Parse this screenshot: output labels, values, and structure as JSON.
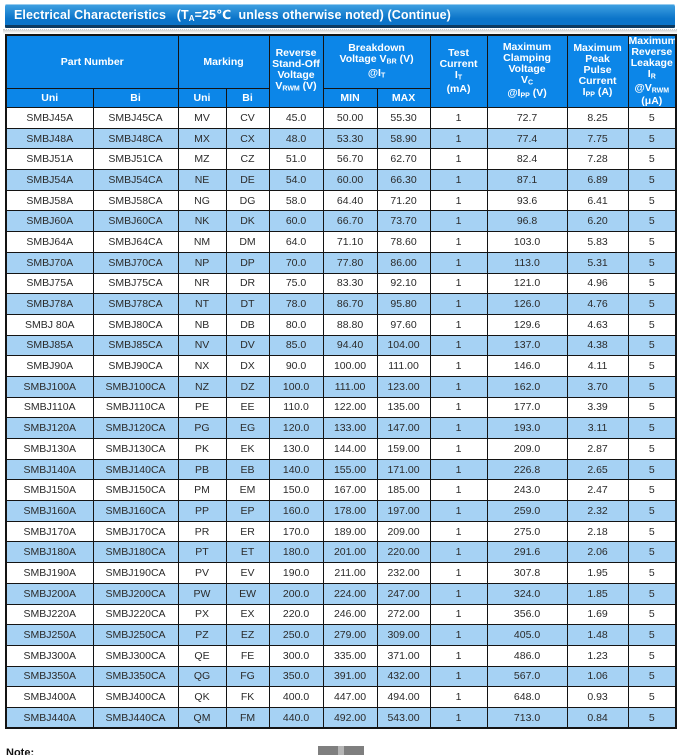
{
  "title": {
    "segments": [
      {
        "t": "Electrical Characteristics   (T"
      },
      {
        "t": "A",
        "sub": true
      },
      {
        "t": "=25℃  unless otherwise noted) (Continue)"
      }
    ]
  },
  "table": {
    "header": {
      "part_number": "Part Number",
      "marking": "Marking",
      "uni": "Uni",
      "bi": "Bi",
      "min": "MIN",
      "max": "MAX",
      "reverse_standoff": [
        {
          "t": "Reverse"
        },
        {
          "br": true
        },
        {
          "t": "Stand-Off"
        },
        {
          "br": true
        },
        {
          "t": "Voltage"
        },
        {
          "br": true
        },
        {
          "t": "V"
        },
        {
          "t": "RWM",
          "sub": true
        },
        {
          "t": " (V)"
        }
      ],
      "breakdown": [
        {
          "t": "Breakdown"
        },
        {
          "br": true
        },
        {
          "t": "Voltage V"
        },
        {
          "t": "BR",
          "sub": true
        },
        {
          "t": "  (V)"
        },
        {
          "br": true
        },
        {
          "t": "@I"
        },
        {
          "t": "T",
          "sub": true
        }
      ],
      "test_current": [
        {
          "t": "Test"
        },
        {
          "br": true
        },
        {
          "t": "Current"
        },
        {
          "br": true
        },
        {
          "t": "I"
        },
        {
          "t": "T",
          "sub": true
        },
        {
          "br": true
        },
        {
          "t": "(mA)"
        }
      ],
      "clamping": [
        {
          "t": "Maximum"
        },
        {
          "br": true
        },
        {
          "t": "Clamping"
        },
        {
          "br": true
        },
        {
          "t": "Voltage"
        },
        {
          "br": true
        },
        {
          "t": "V"
        },
        {
          "t": "C",
          "sub": true
        },
        {
          "br": true
        },
        {
          "t": "@I"
        },
        {
          "t": "PP",
          "sub": true
        },
        {
          "t": " (V)"
        }
      ],
      "peak_pulse": [
        {
          "t": "Maximum"
        },
        {
          "br": true
        },
        {
          "t": "Peak"
        },
        {
          "br": true
        },
        {
          "t": "Pulse"
        },
        {
          "br": true
        },
        {
          "t": "Current"
        },
        {
          "br": true
        },
        {
          "t": "I"
        },
        {
          "t": "PP",
          "sub": true
        },
        {
          "t": " (A)"
        }
      ],
      "reverse_leakage": [
        {
          "t": "Maximum"
        },
        {
          "br": true
        },
        {
          "t": "Reverse"
        },
        {
          "br": true
        },
        {
          "t": "Leakage I"
        },
        {
          "t": "R",
          "sub": true
        },
        {
          "br": true
        },
        {
          "t": "@V"
        },
        {
          "t": "RWM",
          "sub": true
        },
        {
          "br": true
        },
        {
          "t": "(μA)"
        }
      ]
    },
    "rows": [
      [
        "SMBJ45A",
        "SMBJ45CA",
        "MV",
        "CV",
        "45.0",
        "50.00",
        "55.30",
        "1",
        "72.7",
        "8.25",
        "5"
      ],
      [
        "SMBJ48A",
        "SMBJ48CA",
        "MX",
        "CX",
        "48.0",
        "53.30",
        "58.90",
        "1",
        "77.4",
        "7.75",
        "5"
      ],
      [
        "SMBJ51A",
        "SMBJ51CA",
        "MZ",
        "CZ",
        "51.0",
        "56.70",
        "62.70",
        "1",
        "82.4",
        "7.28",
        "5"
      ],
      [
        "SMBJ54A",
        "SMBJ54CA",
        "NE",
        "DE",
        "54.0",
        "60.00",
        "66.30",
        "1",
        "87.1",
        "6.89",
        "5"
      ],
      [
        "SMBJ58A",
        "SMBJ58CA",
        "NG",
        "DG",
        "58.0",
        "64.40",
        "71.20",
        "1",
        "93.6",
        "6.41",
        "5"
      ],
      [
        "SMBJ60A",
        "SMBJ60CA",
        "NK",
        "DK",
        "60.0",
        "66.70",
        "73.70",
        "1",
        "96.8",
        "6.20",
        "5"
      ],
      [
        "SMBJ64A",
        "SMBJ64CA",
        "NM",
        "DM",
        "64.0",
        "71.10",
        "78.60",
        "1",
        "103.0",
        "5.83",
        "5"
      ],
      [
        "SMBJ70A",
        "SMBJ70CA",
        "NP",
        "DP",
        "70.0",
        "77.80",
        "86.00",
        "1",
        "113.0",
        "5.31",
        "5"
      ],
      [
        "SMBJ75A",
        "SMBJ75CA",
        "NR",
        "DR",
        "75.0",
        "83.30",
        "92.10",
        "1",
        "121.0",
        "4.96",
        "5"
      ],
      [
        "SMBJ78A",
        "SMBJ78CA",
        "NT",
        "DT",
        "78.0",
        "86.70",
        "95.80",
        "1",
        "126.0",
        "4.76",
        "5"
      ],
      [
        "SMBJ 80A",
        "SMBJ80CA",
        "NB",
        "DB",
        "80.0",
        "88.80",
        "97.60",
        "1",
        "129.6",
        "4.63",
        "5"
      ],
      [
        "SMBJ85A",
        "SMBJ85CA",
        "NV",
        "DV",
        "85.0",
        "94.40",
        "104.00",
        "1",
        "137.0",
        "4.38",
        "5"
      ],
      [
        "SMBJ90A",
        "SMBJ90CA",
        "NX",
        "DX",
        "90.0",
        "100.00",
        "111.00",
        "1",
        "146.0",
        "4.11",
        "5"
      ],
      [
        "SMBJ100A",
        "SMBJ100CA",
        "NZ",
        "DZ",
        "100.0",
        "111.00",
        "123.00",
        "1",
        "162.0",
        "3.70",
        "5"
      ],
      [
        "SMBJ110A",
        "SMBJ110CA",
        "PE",
        "EE",
        "110.0",
        "122.00",
        "135.00",
        "1",
        "177.0",
        "3.39",
        "5"
      ],
      [
        "SMBJ120A",
        "SMBJ120CA",
        "PG",
        "EG",
        "120.0",
        "133.00",
        "147.00",
        "1",
        "193.0",
        "3.11",
        "5"
      ],
      [
        "SMBJ130A",
        "SMBJ130CA",
        "PK",
        "EK",
        "130.0",
        "144.00",
        "159.00",
        "1",
        "209.0",
        "2.87",
        "5"
      ],
      [
        "SMBJ140A",
        "SMBJ140CA",
        "PB",
        "EB",
        "140.0",
        "155.00",
        "171.00",
        "1",
        "226.8",
        "2.65",
        "5"
      ],
      [
        "SMBJ150A",
        "SMBJ150CA",
        "PM",
        "EM",
        "150.0",
        "167.00",
        "185.00",
        "1",
        "243.0",
        "2.47",
        "5"
      ],
      [
        "SMBJ160A",
        "SMBJ160CA",
        "PP",
        "EP",
        "160.0",
        "178.00",
        "197.00",
        "1",
        "259.0",
        "2.32",
        "5"
      ],
      [
        "SMBJ170A",
        "SMBJ170CA",
        "PR",
        "ER",
        "170.0",
        "189.00",
        "209.00",
        "1",
        "275.0",
        "2.18",
        "5"
      ],
      [
        "SMBJ180A",
        "SMBJ180CA",
        "PT",
        "ET",
        "180.0",
        "201.00",
        "220.00",
        "1",
        "291.6",
        "2.06",
        "5"
      ],
      [
        "SMBJ190A",
        "SMBJ190CA",
        "PV",
        "EV",
        "190.0",
        "211.00",
        "232.00",
        "1",
        "307.8",
        "1.95",
        "5"
      ],
      [
        "SMBJ200A",
        "SMBJ200CA",
        "PW",
        "EW",
        "200.0",
        "224.00",
        "247.00",
        "1",
        "324.0",
        "1.85",
        "5"
      ],
      [
        "SMBJ220A",
        "SMBJ220CA",
        "PX",
        "EX",
        "220.0",
        "246.00",
        "272.00",
        "1",
        "356.0",
        "1.69",
        "5"
      ],
      [
        "SMBJ250A",
        "SMBJ250CA",
        "PZ",
        "EZ",
        "250.0",
        "279.00",
        "309.00",
        "1",
        "405.0",
        "1.48",
        "5"
      ],
      [
        "SMBJ300A",
        "SMBJ300CA",
        "QE",
        "FE",
        "300.0",
        "335.00",
        "371.00",
        "1",
        "486.0",
        "1.23",
        "5"
      ],
      [
        "SMBJ350A",
        "SMBJ350CA",
        "QG",
        "FG",
        "350.0",
        "391.00",
        "432.00",
        "1",
        "567.0",
        "1.06",
        "5"
      ],
      [
        "SMBJ400A",
        "SMBJ400CA",
        "QK",
        "FK",
        "400.0",
        "447.00",
        "494.00",
        "1",
        "648.0",
        "0.93",
        "5"
      ],
      [
        "SMBJ440A",
        "SMBJ440CA",
        "QM",
        "FM",
        "440.0",
        "492.00",
        "543.00",
        "1",
        "713.0",
        "0.84",
        "5"
      ]
    ]
  },
  "note_label": "Note:",
  "colors": {
    "title-blue-top": "#41a2e2",
    "title-blue-bottom": "#0b74c9",
    "title-border": "#0e3a5f",
    "header-blue": "#0c86e8",
    "row-alt-blue": "#a6d2f4",
    "grid-border": "#141414",
    "data-text": "#2a2a2a",
    "thumb-gray": "#7f7f7f",
    "thumb-notch": "#b5b5b5"
  }
}
